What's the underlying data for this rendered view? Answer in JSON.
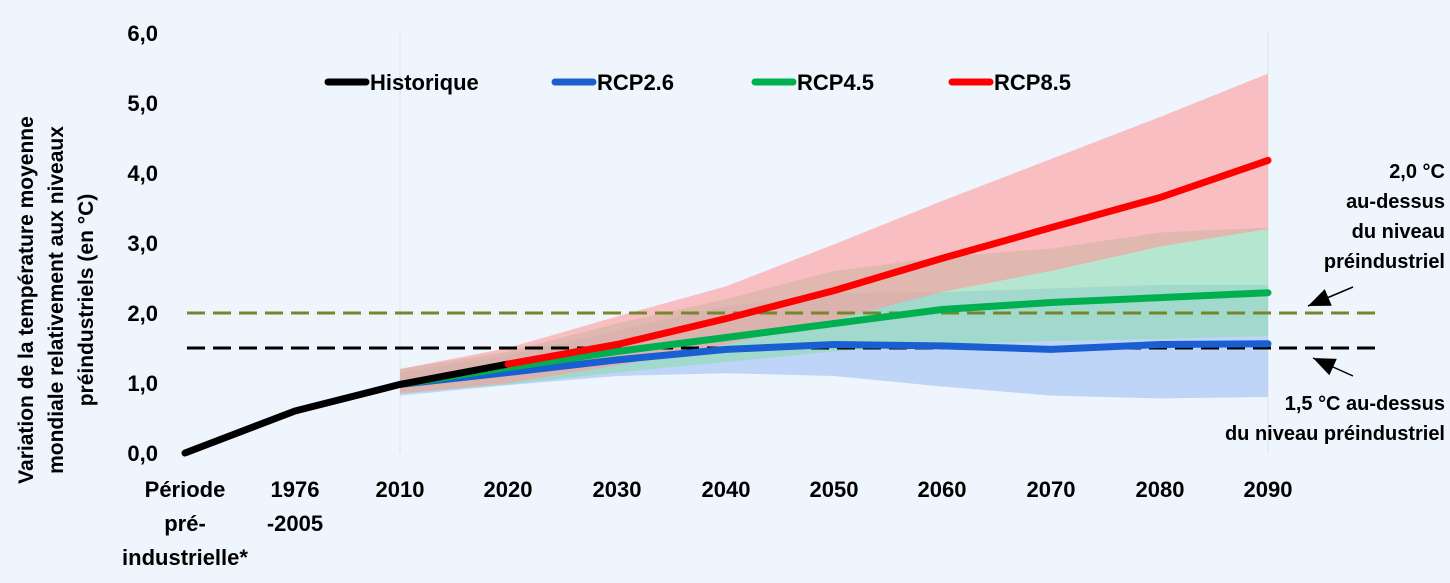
{
  "chart_data": {
    "type": "line",
    "title": "",
    "ylabel": "Variation de la température moyenne mondiale relativement aux niveaux préindustriels (en °C)",
    "ylabel_lines": [
      "Variation de la température moyenne",
      "mondiale relativement aux niveaux",
      "préindustriels (en °C)"
    ],
    "xlabel": "",
    "ylim": [
      0,
      6
    ],
    "yticks": [
      0,
      1,
      2,
      3,
      4,
      5,
      6
    ],
    "ytick_labels": [
      "0,0",
      "1,0",
      "2,0",
      "3,0",
      "4,0",
      "5,0",
      "6,0"
    ],
    "categories": [
      "Période pré-industrielle*",
      "1976-2005",
      "2010",
      "2020",
      "2030",
      "2040",
      "2050",
      "2060",
      "2070",
      "2080",
      "2090"
    ],
    "category_label_lines": [
      [
        "Période",
        "pré-",
        "industrielle*"
      ],
      [
        "1976",
        "-2005"
      ],
      [
        "2010"
      ],
      [
        "2020"
      ],
      [
        "2030"
      ],
      [
        "2040"
      ],
      [
        "2050"
      ],
      [
        "2060"
      ],
      [
        "2070"
      ],
      [
        "2080"
      ],
      [
        "2090"
      ]
    ],
    "grid": false,
    "legend_position": "top",
    "series": [
      {
        "name": "Historique",
        "color": "#000000",
        "values": [
          0.0,
          0.6,
          0.98,
          1.27,
          null,
          null,
          null,
          null,
          null,
          null,
          null
        ]
      },
      {
        "name": "RCP2.6",
        "color": "#1a5fd1",
        "values": [
          null,
          null,
          0.98,
          1.15,
          1.33,
          1.48,
          1.55,
          1.53,
          1.48,
          1.55,
          1.56
        ],
        "range_low": [
          null,
          null,
          0.82,
          0.97,
          1.1,
          1.14,
          1.1,
          0.95,
          0.82,
          0.78,
          0.8
        ],
        "range_high": [
          null,
          null,
          1.15,
          1.4,
          1.75,
          2.1,
          2.28,
          2.3,
          2.35,
          2.4,
          2.4
        ],
        "band_color": "#a9c8f5"
      },
      {
        "name": "RCP4.5",
        "color": "#00b050",
        "values": [
          null,
          null,
          0.98,
          1.22,
          1.45,
          1.65,
          1.85,
          2.05,
          2.15,
          2.22,
          2.29
        ],
        "range_low": [
          null,
          null,
          0.85,
          0.98,
          1.15,
          1.3,
          1.45,
          1.55,
          1.6,
          1.63,
          1.67
        ],
        "range_high": [
          null,
          null,
          1.2,
          1.45,
          1.85,
          2.2,
          2.6,
          2.8,
          2.92,
          3.15,
          3.22
        ],
        "band_color": "#8fdcb0"
      },
      {
        "name": "RCP8.5",
        "color": "#ff0000",
        "values": [
          null,
          null,
          null,
          1.27,
          1.55,
          1.92,
          2.32,
          2.78,
          3.22,
          3.65,
          4.18
        ],
        "range_low": [
          null,
          null,
          0.85,
          1.0,
          1.25,
          1.55,
          1.9,
          2.3,
          2.6,
          2.95,
          3.2
        ],
        "range_high": [
          null,
          null,
          1.2,
          1.5,
          1.95,
          2.38,
          2.98,
          3.6,
          4.2,
          4.8,
          5.42
        ],
        "band_color": "#ff9a9a"
      }
    ],
    "reference_lines": [
      {
        "value": 2.0,
        "color": "#77862a",
        "style": "dashed",
        "label_lines": [
          "2,0 °C",
          "au-dessus",
          "du niveau",
          "préindustriel"
        ]
      },
      {
        "value": 1.5,
        "color": "#000000",
        "style": "dashed",
        "label_lines": [
          "1,5 °C au-dessus",
          "du niveau préindustriel"
        ]
      }
    ]
  }
}
